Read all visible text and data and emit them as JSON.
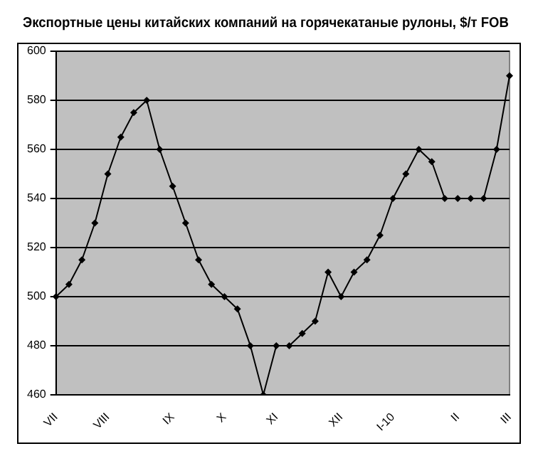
{
  "chart_data": {
    "type": "line",
    "title": "Экспортные цены китайских компаний на горячекатаные рулоны, $/т FOB",
    "categories": [
      "VII",
      null,
      null,
      null,
      "VIII",
      null,
      null,
      null,
      null,
      "IX",
      null,
      null,
      null,
      "X",
      null,
      null,
      null,
      "XI",
      null,
      null,
      null,
      null,
      "XII",
      null,
      null,
      null,
      "I-10",
      null,
      null,
      null,
      null,
      "II",
      null,
      null,
      null,
      "III"
    ],
    "series": [
      {
        "color": "#000000",
        "values": [
          500,
          505,
          515,
          530,
          550,
          565,
          575,
          580,
          560,
          545,
          530,
          515,
          505,
          500,
          495,
          480,
          460,
          480,
          480,
          485,
          490,
          510,
          500,
          510,
          515,
          525,
          540,
          550,
          560,
          555,
          540,
          540,
          540,
          540,
          560,
          590
        ]
      }
    ],
    "ylim": [
      460,
      600
    ],
    "yticks": [
      460,
      480,
      500,
      520,
      540,
      560,
      580,
      600
    ],
    "grid": "y",
    "legend": false,
    "marker": "diamond",
    "line_style": "solid"
  }
}
